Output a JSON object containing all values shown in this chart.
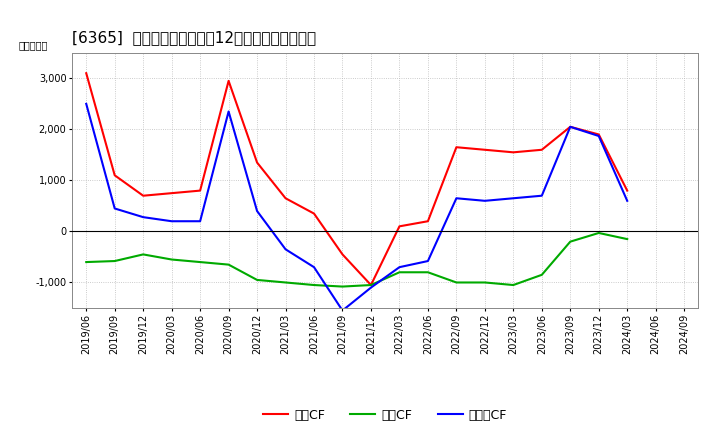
{
  "title": "[6365]  キャッシュフローの12か月移動合計の推移",
  "ylabel": "（百万円）",
  "x_labels": [
    "2019/06",
    "2019/09",
    "2019/12",
    "2020/03",
    "2020/06",
    "2020/09",
    "2020/12",
    "2021/03",
    "2021/06",
    "2021/09",
    "2021/12",
    "2022/03",
    "2022/06",
    "2022/09",
    "2022/12",
    "2023/03",
    "2023/06",
    "2023/09",
    "2023/12",
    "2024/03",
    "2024/06",
    "2024/09"
  ],
  "operating_cf": [
    3100,
    1100,
    700,
    750,
    800,
    2950,
    1350,
    650,
    350,
    -450,
    -1050,
    100,
    200,
    1650,
    1600,
    1550,
    1600,
    2050,
    1900,
    800,
    null,
    null
  ],
  "investing_cf": [
    -600,
    -580,
    -450,
    -550,
    -600,
    -650,
    -950,
    -1000,
    -1050,
    -1080,
    -1050,
    -800,
    -800,
    -1000,
    -1000,
    -1050,
    -850,
    -200,
    -30,
    -150,
    null,
    null
  ],
  "free_cf": [
    2500,
    450,
    280,
    200,
    200,
    2350,
    400,
    -350,
    -700,
    -1550,
    -1100,
    -700,
    -580,
    650,
    600,
    650,
    700,
    2050,
    1870,
    600,
    null,
    null
  ],
  "operating_color": "#ff0000",
  "investing_color": "#00aa00",
  "free_color": "#0000ff",
  "ylim": [
    -1500,
    3500
  ],
  "yticks": [
    -1000,
    0,
    1000,
    2000,
    3000
  ],
  "bg_color": "#ffffff",
  "grid_color": "#bbbbbb",
  "title_fontsize": 11,
  "axis_fontsize": 7,
  "legend_fontsize": 9,
  "legend_labels": [
    "営業CF",
    "投資CF",
    "フリーCF"
  ]
}
